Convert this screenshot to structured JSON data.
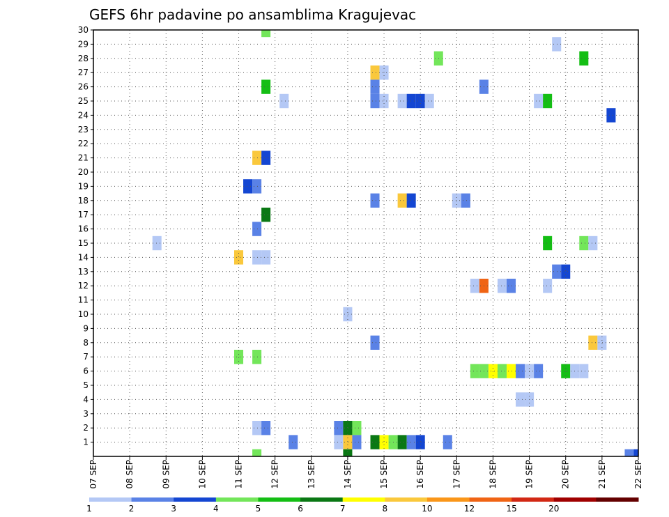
{
  "chart_data": {
    "type": "heatmap",
    "title": "GEFS 6hr padavine po ansamblima Kragujevac",
    "x_tick_labels": [
      "07 SEP",
      "08 SEP",
      "09 SEP",
      "10 SEP",
      "11 SEP",
      "12 SEP",
      "13 SEP",
      "14 SEP",
      "15 SEP",
      "16 SEP",
      "17 SEP",
      "18 SEP",
      "19 SEP",
      "20 SEP",
      "21 SEP",
      "22 SEP"
    ],
    "y_tick_labels": [
      "1",
      "2",
      "3",
      "4",
      "5",
      "6",
      "7",
      "8",
      "9",
      "10",
      "11",
      "12",
      "13",
      "14",
      "15",
      "16",
      "17",
      "18",
      "19",
      "20",
      "21",
      "22",
      "23",
      "24",
      "25",
      "26",
      "27",
      "28",
      "29",
      "30"
    ],
    "xlim": [
      0,
      15
    ],
    "ylim": [
      0,
      30
    ],
    "grid": true,
    "time_step_days": 0.25,
    "color_levels": [
      {
        "label": "1",
        "color": "#b4c8f5"
      },
      {
        "label": "2",
        "color": "#5a82e6"
      },
      {
        "label": "3",
        "color": "#1446d2"
      },
      {
        "label": "4",
        "color": "#73e65a"
      },
      {
        "label": "5",
        "color": "#14be14"
      },
      {
        "label": "6",
        "color": "#0a7814"
      },
      {
        "label": "7",
        "color": "#ffff00"
      },
      {
        "label": "8",
        "color": "#fac83c"
      },
      {
        "label": "10",
        "color": "#fa9619"
      },
      {
        "label": "12",
        "color": "#f06414"
      },
      {
        "label": "15",
        "color": "#d22814"
      },
      {
        "label": "20",
        "color": "#a00000"
      },
      {
        "label": "",
        "color": "#640000"
      }
    ],
    "cells": [
      {
        "member": 30,
        "day": 4.75,
        "level": 4
      },
      {
        "member": 29,
        "day": 12.75,
        "level": 1
      },
      {
        "member": 28,
        "day": 9.5,
        "level": 4
      },
      {
        "member": 28,
        "day": 13.5,
        "level": 5
      },
      {
        "member": 27,
        "day": 7.75,
        "level": 8
      },
      {
        "member": 27,
        "day": 8.0,
        "level": 1
      },
      {
        "member": 26,
        "day": 4.75,
        "level": 5
      },
      {
        "member": 26,
        "day": 7.75,
        "level": 2
      },
      {
        "member": 26,
        "day": 10.75,
        "level": 2
      },
      {
        "member": 25,
        "day": 5.25,
        "level": 1
      },
      {
        "member": 25,
        "day": 7.75,
        "level": 2
      },
      {
        "member": 25,
        "day": 8.0,
        "level": 1
      },
      {
        "member": 25,
        "day": 8.5,
        "level": 1
      },
      {
        "member": 25,
        "day": 8.75,
        "level": 3
      },
      {
        "member": 25,
        "day": 9.0,
        "level": 3
      },
      {
        "member": 25,
        "day": 9.25,
        "level": 1
      },
      {
        "member": 25,
        "day": 12.25,
        "level": 1
      },
      {
        "member": 25,
        "day": 12.5,
        "level": 5
      },
      {
        "member": 24,
        "day": 14.25,
        "level": 3
      },
      {
        "member": 21,
        "day": 4.5,
        "level": 8
      },
      {
        "member": 21,
        "day": 4.75,
        "level": 3
      },
      {
        "member": 19,
        "day": 4.25,
        "level": 3
      },
      {
        "member": 19,
        "day": 4.5,
        "level": 2
      },
      {
        "member": 18,
        "day": 7.75,
        "level": 2
      },
      {
        "member": 18,
        "day": 8.5,
        "level": 8
      },
      {
        "member": 18,
        "day": 8.75,
        "level": 3
      },
      {
        "member": 18,
        "day": 10.0,
        "level": 1
      },
      {
        "member": 18,
        "day": 10.25,
        "level": 2
      },
      {
        "member": 17,
        "day": 4.75,
        "level": 6
      },
      {
        "member": 16,
        "day": 4.5,
        "level": 2
      },
      {
        "member": 15,
        "day": 1.75,
        "level": 1
      },
      {
        "member": 15,
        "day": 12.5,
        "level": 5
      },
      {
        "member": 15,
        "day": 13.5,
        "level": 4
      },
      {
        "member": 15,
        "day": 13.75,
        "level": 1
      },
      {
        "member": 14,
        "day": 4.0,
        "level": 8
      },
      {
        "member": 14,
        "day": 4.5,
        "level": 1
      },
      {
        "member": 14,
        "day": 4.75,
        "level": 1
      },
      {
        "member": 13,
        "day": 12.75,
        "level": 2
      },
      {
        "member": 13,
        "day": 13.0,
        "level": 3
      },
      {
        "member": 12,
        "day": 10.5,
        "level": 1
      },
      {
        "member": 12,
        "day": 10.75,
        "level": 12
      },
      {
        "member": 12,
        "day": 11.25,
        "level": 1
      },
      {
        "member": 12,
        "day": 11.5,
        "level": 2
      },
      {
        "member": 12,
        "day": 12.5,
        "level": 1
      },
      {
        "member": 10,
        "day": 7.0,
        "level": 1
      },
      {
        "member": 8,
        "day": 7.75,
        "level": 2
      },
      {
        "member": 8,
        "day": 13.75,
        "level": 8
      },
      {
        "member": 8,
        "day": 14.0,
        "level": 1
      },
      {
        "member": 7,
        "day": 4.0,
        "level": 4
      },
      {
        "member": 7,
        "day": 4.5,
        "level": 4
      },
      {
        "member": 6,
        "day": 10.5,
        "level": 4
      },
      {
        "member": 6,
        "day": 10.75,
        "level": 4
      },
      {
        "member": 6,
        "day": 11.0,
        "level": 7
      },
      {
        "member": 6,
        "day": 11.25,
        "level": 4
      },
      {
        "member": 6,
        "day": 11.5,
        "level": 7
      },
      {
        "member": 6,
        "day": 11.75,
        "level": 2
      },
      {
        "member": 6,
        "day": 12.0,
        "level": 1
      },
      {
        "member": 6,
        "day": 12.25,
        "level": 2
      },
      {
        "member": 6,
        "day": 13.0,
        "level": 5
      },
      {
        "member": 6,
        "day": 13.25,
        "level": 1
      },
      {
        "member": 6,
        "day": 13.5,
        "level": 1
      },
      {
        "member": 4,
        "day": 11.75,
        "level": 1
      },
      {
        "member": 4,
        "day": 12.0,
        "level": 1
      },
      {
        "member": 2,
        "day": 4.5,
        "level": 1
      },
      {
        "member": 2,
        "day": 4.75,
        "level": 2
      },
      {
        "member": 2,
        "day": 6.75,
        "level": 2
      },
      {
        "member": 2,
        "day": 7.0,
        "level": 6
      },
      {
        "member": 2,
        "day": 7.25,
        "level": 4
      },
      {
        "member": 1,
        "day": 5.5,
        "level": 2
      },
      {
        "member": 1,
        "day": 6.75,
        "level": 1
      },
      {
        "member": 1,
        "day": 7.0,
        "level": 8
      },
      {
        "member": 1,
        "day": 7.25,
        "level": 2
      },
      {
        "member": 1,
        "day": 7.75,
        "level": 6
      },
      {
        "member": 1,
        "day": 8.0,
        "level": 7
      },
      {
        "member": 1,
        "day": 8.25,
        "level": 4
      },
      {
        "member": 1,
        "day": 8.5,
        "level": 6
      },
      {
        "member": 1,
        "day": 8.75,
        "level": 2
      },
      {
        "member": 1,
        "day": 9.0,
        "level": 3
      },
      {
        "member": 1,
        "day": 9.75,
        "level": 2
      },
      {
        "member": 0,
        "day": 4.5,
        "level": 4
      },
      {
        "member": 0,
        "day": 7.0,
        "level": 6
      },
      {
        "member": 0,
        "day": 14.75,
        "level": 2
      },
      {
        "member": 0,
        "day": 15.0,
        "level": 3
      }
    ]
  }
}
